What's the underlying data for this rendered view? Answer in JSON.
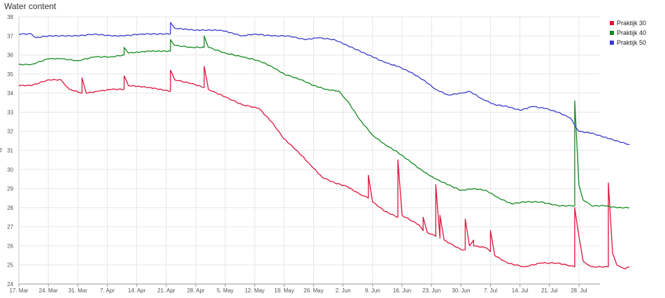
{
  "title": "Water content",
  "chart_data": {
    "type": "line",
    "title": "Water content",
    "xlabel": "",
    "ylabel": "%",
    "ylim": [
      24,
      38
    ],
    "yticks": [
      24,
      25,
      26,
      27,
      28,
      29,
      30,
      31,
      32,
      33,
      34,
      35,
      36,
      37,
      38
    ],
    "xlim": [
      "2024-03-17",
      "2024-08-02"
    ],
    "xtick_labels": [
      "17. Mar",
      "24. Mar",
      "31. Mar",
      "7. Apr",
      "14. Apr",
      "21. Apr",
      "28. Apr",
      "5. May",
      "12. May",
      "19. May",
      "26. May",
      "2. Jun",
      "9. Jun",
      "16. Jun",
      "23. Jun",
      "30. Jun",
      "7. Jul",
      "14. Jul",
      "21. Jul",
      "28. Jul"
    ],
    "xtick_dates": [
      "2024-03-17",
      "2024-03-24",
      "2024-03-31",
      "2024-04-07",
      "2024-04-14",
      "2024-04-21",
      "2024-04-28",
      "2024-05-05",
      "2024-05-12",
      "2024-05-19",
      "2024-05-26",
      "2024-06-02",
      "2024-06-09",
      "2024-06-16",
      "2024-06-23",
      "2024-06-30",
      "2024-07-07",
      "2024-07-14",
      "2024-07-21",
      "2024-07-28"
    ],
    "grid": true,
    "legend_position": "top-right",
    "series": [
      {
        "name": "Praktijk 30",
        "color": "#dc143c",
        "points": [
          [
            "2024-03-17",
            34.4
          ],
          [
            "2024-03-20",
            34.4
          ],
          [
            "2024-03-24",
            34.7
          ],
          [
            "2024-03-27",
            34.7
          ],
          [
            "2024-03-29",
            34.2
          ],
          [
            "2024-04-01",
            34.0
          ],
          [
            "2024-04-01",
            34.8
          ],
          [
            "2024-04-02",
            34.0
          ],
          [
            "2024-04-05",
            34.1
          ],
          [
            "2024-04-08",
            34.2
          ],
          [
            "2024-04-11",
            34.2
          ],
          [
            "2024-04-11",
            34.9
          ],
          [
            "2024-04-12",
            34.4
          ],
          [
            "2024-04-17",
            34.3
          ],
          [
            "2024-04-22",
            34.1
          ],
          [
            "2024-04-22",
            35.2
          ],
          [
            "2024-04-23",
            34.7
          ],
          [
            "2024-04-27",
            34.5
          ],
          [
            "2024-04-30",
            34.3
          ],
          [
            "2024-04-30",
            35.4
          ],
          [
            "2024-05-01",
            34.2
          ],
          [
            "2024-05-05",
            33.8
          ],
          [
            "2024-05-09",
            33.4
          ],
          [
            "2024-05-13",
            33.2
          ],
          [
            "2024-05-16",
            32.5
          ],
          [
            "2024-05-19",
            31.6
          ],
          [
            "2024-05-22",
            31.0
          ],
          [
            "2024-05-25",
            30.3
          ],
          [
            "2024-05-28",
            29.6
          ],
          [
            "2024-05-31",
            29.3
          ],
          [
            "2024-06-03",
            29.1
          ],
          [
            "2024-06-06",
            28.7
          ],
          [
            "2024-06-08",
            28.5
          ],
          [
            "2024-06-08",
            29.7
          ],
          [
            "2024-06-09",
            28.3
          ],
          [
            "2024-06-12",
            27.8
          ],
          [
            "2024-06-15",
            27.5
          ],
          [
            "2024-06-15",
            30.5
          ],
          [
            "2024-06-16",
            27.6
          ],
          [
            "2024-06-20",
            27.1
          ],
          [
            "2024-06-21",
            26.8
          ],
          [
            "2024-06-21",
            27.5
          ],
          [
            "2024-06-22",
            26.7
          ],
          [
            "2024-06-24",
            26.5
          ],
          [
            "2024-06-24",
            29.2
          ],
          [
            "2024-06-25",
            26.4
          ],
          [
            "2024-06-25",
            27.6
          ],
          [
            "2024-06-26",
            26.3
          ],
          [
            "2024-06-30",
            25.8
          ],
          [
            "2024-07-01",
            25.8
          ],
          [
            "2024-07-01",
            27.4
          ],
          [
            "2024-07-02",
            26.0
          ],
          [
            "2024-07-03",
            26.3
          ],
          [
            "2024-07-03",
            26.0
          ],
          [
            "2024-07-06",
            25.9
          ],
          [
            "2024-07-07",
            25.7
          ],
          [
            "2024-07-07",
            26.8
          ],
          [
            "2024-07-08",
            25.5
          ],
          [
            "2024-07-11",
            25.1
          ],
          [
            "2024-07-15",
            24.9
          ],
          [
            "2024-07-19",
            25.1
          ],
          [
            "2024-07-23",
            25.1
          ],
          [
            "2024-07-27",
            24.9
          ],
          [
            "2024-07-27",
            28.0
          ],
          [
            "2024-07-28",
            26.5
          ],
          [
            "2024-07-29",
            25.2
          ],
          [
            "2024-07-31",
            24.9
          ],
          [
            "2024-08-04",
            24.9
          ],
          [
            "2024-08-04",
            29.3
          ],
          [
            "2024-08-05",
            25.6
          ],
          [
            "2024-08-06",
            25.0
          ],
          [
            "2024-08-08",
            24.8
          ],
          [
            "2024-08-09",
            24.9
          ]
        ]
      },
      {
        "name": "Praktijk 40",
        "color": "#138a1f",
        "points": [
          [
            "2024-03-17",
            35.5
          ],
          [
            "2024-03-20",
            35.5
          ],
          [
            "2024-03-24",
            35.8
          ],
          [
            "2024-03-27",
            35.8
          ],
          [
            "2024-03-31",
            35.7
          ],
          [
            "2024-04-04",
            35.9
          ],
          [
            "2024-04-08",
            35.9
          ],
          [
            "2024-04-11",
            36.0
          ],
          [
            "2024-04-11",
            36.4
          ],
          [
            "2024-04-12",
            36.1
          ],
          [
            "2024-04-17",
            36.2
          ],
          [
            "2024-04-22",
            36.2
          ],
          [
            "2024-04-22",
            36.8
          ],
          [
            "2024-04-23",
            36.5
          ],
          [
            "2024-04-27",
            36.4
          ],
          [
            "2024-04-30",
            36.4
          ],
          [
            "2024-04-30",
            37.0
          ],
          [
            "2024-05-01",
            36.4
          ],
          [
            "2024-05-05",
            36.1
          ],
          [
            "2024-05-09",
            35.9
          ],
          [
            "2024-05-13",
            35.7
          ],
          [
            "2024-05-16",
            35.4
          ],
          [
            "2024-05-19",
            35.0
          ],
          [
            "2024-05-23",
            34.7
          ],
          [
            "2024-05-26",
            34.4
          ],
          [
            "2024-05-29",
            34.2
          ],
          [
            "2024-06-01",
            34.1
          ],
          [
            "2024-06-03",
            33.6
          ],
          [
            "2024-06-06",
            32.6
          ],
          [
            "2024-06-09",
            31.8
          ],
          [
            "2024-06-12",
            31.3
          ],
          [
            "2024-06-15",
            30.9
          ],
          [
            "2024-06-18",
            30.4
          ],
          [
            "2024-06-21",
            29.9
          ],
          [
            "2024-06-24",
            29.5
          ],
          [
            "2024-06-27",
            29.2
          ],
          [
            "2024-06-30",
            28.9
          ],
          [
            "2024-07-03",
            29.0
          ],
          [
            "2024-07-06",
            28.9
          ],
          [
            "2024-07-09",
            28.5
          ],
          [
            "2024-07-12",
            28.2
          ],
          [
            "2024-07-15",
            28.3
          ],
          [
            "2024-07-19",
            28.3
          ],
          [
            "2024-07-23",
            28.1
          ],
          [
            "2024-07-27",
            28.1
          ],
          [
            "2024-07-27",
            33.6
          ],
          [
            "2024-07-28",
            29.2
          ],
          [
            "2024-07-29",
            28.4
          ],
          [
            "2024-07-31",
            28.1
          ],
          [
            "2024-08-03",
            28.1
          ],
          [
            "2024-08-06",
            28.0
          ],
          [
            "2024-08-09",
            28.0
          ]
        ]
      },
      {
        "name": "Praktijk 50",
        "color": "#3a3acc",
        "points": [
          [
            "2024-03-17",
            37.1
          ],
          [
            "2024-03-20",
            37.1
          ],
          [
            "2024-03-21",
            36.9
          ],
          [
            "2024-03-24",
            37.0
          ],
          [
            "2024-03-31",
            37.0
          ],
          [
            "2024-04-04",
            37.1
          ],
          [
            "2024-04-08",
            37.0
          ],
          [
            "2024-04-11",
            37.0
          ],
          [
            "2024-04-15",
            37.1
          ],
          [
            "2024-04-22",
            37.1
          ],
          [
            "2024-04-22",
            37.7
          ],
          [
            "2024-04-23",
            37.4
          ],
          [
            "2024-04-28",
            37.3
          ],
          [
            "2024-05-04",
            37.3
          ],
          [
            "2024-05-09",
            37.0
          ],
          [
            "2024-05-12",
            37.1
          ],
          [
            "2024-05-16",
            37.0
          ],
          [
            "2024-05-20",
            37.0
          ],
          [
            "2024-05-24",
            36.8
          ],
          [
            "2024-05-27",
            36.9
          ],
          [
            "2024-05-31",
            36.8
          ],
          [
            "2024-06-03",
            36.5
          ],
          [
            "2024-06-06",
            36.2
          ],
          [
            "2024-06-09",
            35.9
          ],
          [
            "2024-06-12",
            35.6
          ],
          [
            "2024-06-15",
            35.4
          ],
          [
            "2024-06-18",
            35.1
          ],
          [
            "2024-06-21",
            34.7
          ],
          [
            "2024-06-24",
            34.2
          ],
          [
            "2024-06-27",
            33.9
          ],
          [
            "2024-06-30",
            34.0
          ],
          [
            "2024-07-02",
            34.1
          ],
          [
            "2024-07-05",
            33.7
          ],
          [
            "2024-07-08",
            33.4
          ],
          [
            "2024-07-11",
            33.3
          ],
          [
            "2024-07-14",
            33.1
          ],
          [
            "2024-07-17",
            33.3
          ],
          [
            "2024-07-20",
            33.2
          ],
          [
            "2024-07-23",
            33.0
          ],
          [
            "2024-07-26",
            32.7
          ],
          [
            "2024-07-27",
            32.3
          ],
          [
            "2024-07-28",
            32.0
          ],
          [
            "2024-07-31",
            31.9
          ],
          [
            "2024-08-03",
            31.7
          ],
          [
            "2024-08-06",
            31.5
          ],
          [
            "2024-08-09",
            31.3
          ]
        ]
      }
    ]
  }
}
